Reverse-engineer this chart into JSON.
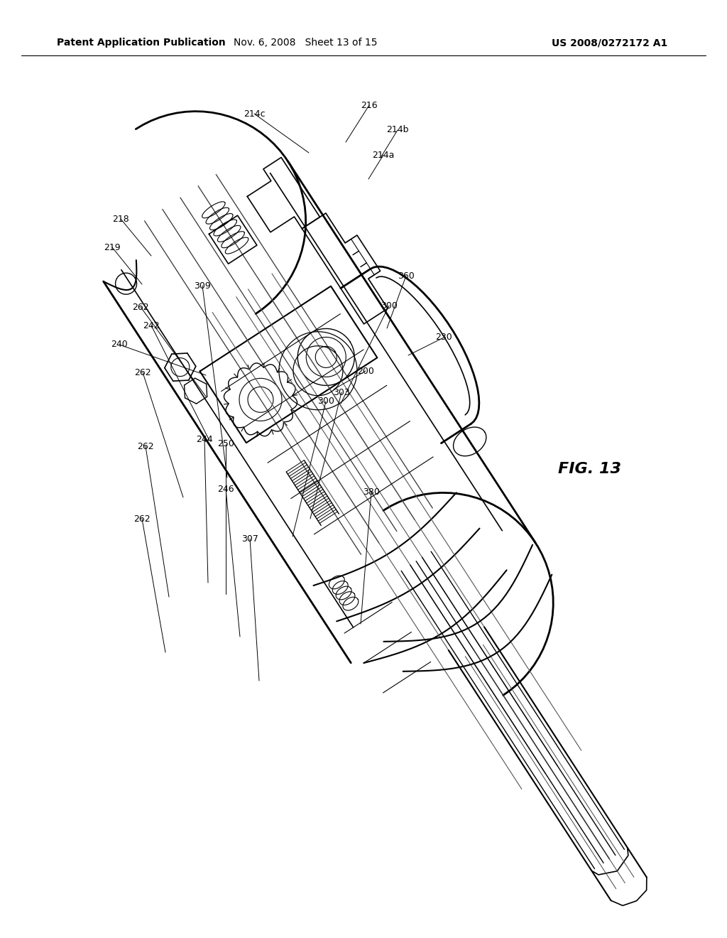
{
  "background_color": "#ffffff",
  "header_left": "Patent Application Publication",
  "header_mid": "Nov. 6, 2008   Sheet 13 of 15",
  "header_right": "US 2008/0272172 A1",
  "fig_label": "FIG. 13",
  "header_fontsize": 10.5,
  "fig_label_fontsize": 16,
  "line_color": "#000000",
  "gray_color": "#888888"
}
